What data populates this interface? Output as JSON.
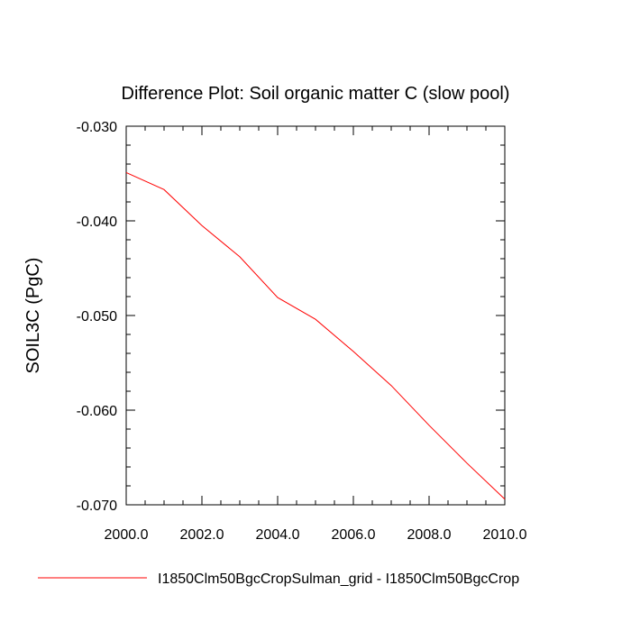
{
  "chart_data": {
    "type": "line",
    "title": "Difference Plot: Soil organic matter C (slow pool)",
    "xlabel": "",
    "ylabel": "SOIL3C  (PgC)",
    "xlim": [
      2000.0,
      2010.0
    ],
    "ylim": [
      -0.07,
      -0.03
    ],
    "xticks": [
      2000.0,
      2002.0,
      2004.0,
      2006.0,
      2008.0,
      2010.0
    ],
    "xtick_labels": [
      "2000.0",
      "2002.0",
      "2004.0",
      "2006.0",
      "2008.0",
      "2010.0"
    ],
    "yticks": [
      -0.03,
      -0.04,
      -0.05,
      -0.06,
      -0.07
    ],
    "ytick_labels": [
      "-0.030",
      "-0.040",
      "-0.050",
      "-0.060",
      "-0.070"
    ],
    "grid": false,
    "legend_position": "bottom",
    "series": [
      {
        "name": "I1850Clm50BgcCropSulman_grid - I1850Clm50BgcCrop",
        "color": "#ff0000",
        "x": [
          2000,
          2001,
          2002,
          2003,
          2004,
          2005,
          2006,
          2007,
          2008,
          2009,
          2010
        ],
        "y": [
          -0.0349,
          -0.0367,
          -0.0405,
          -0.0438,
          -0.0481,
          -0.0504,
          -0.0538,
          -0.0574,
          -0.0616,
          -0.0656,
          -0.0694
        ]
      }
    ]
  }
}
